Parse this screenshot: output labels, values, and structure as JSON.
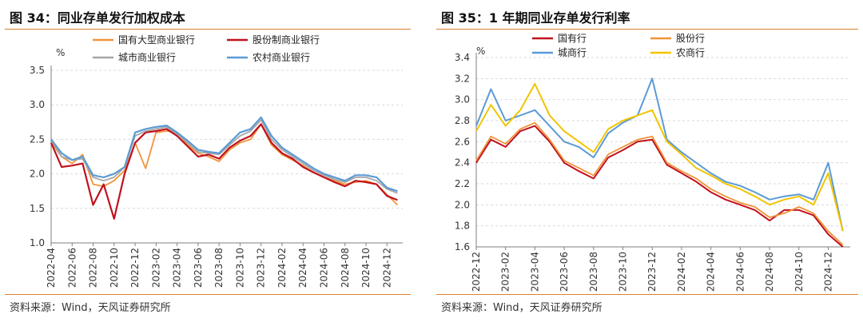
{
  "charts": [
    {
      "figure_title": "图 34：同业存单发行加权成本",
      "source": "资料来源：Wind，天风证券研究所",
      "unit": "%"
    },
    {
      "figure_title": "图 35：1 年期同业存单发行利率",
      "source": "资料来源：Wind，天风证券研究所",
      "unit": "%"
    }
  ],
  "chart_data": [
    {
      "type": "line",
      "title": "图 34：同业存单发行加权成本",
      "ylabel": "%",
      "ylim": [
        1.0,
        3.5
      ],
      "y_ticks": [
        "1.0",
        "1.5",
        "2.0",
        "2.5",
        "3.0",
        "3.5"
      ],
      "x_ticks": [
        "2022-04",
        "2022-06",
        "2022-08",
        "2022-10",
        "2022-12",
        "2023-02",
        "2023-04",
        "2023-06",
        "2023-08",
        "2023-10",
        "2023-12",
        "2024-02",
        "2024-04",
        "2024-06",
        "2024-08",
        "2024-10",
        "2024-12"
      ],
      "grid": true,
      "legend": "top",
      "series": [
        {
          "name": "国有大型商业银行",
          "color": "#f0943a",
          "width": 1.8,
          "x": [
            "2022-04",
            "2022-05",
            "2022-06",
            "2022-07",
            "2022-08",
            "2022-09",
            "2022-10",
            "2022-11",
            "2022-12",
            "2023-01",
            "2023-02",
            "2023-03",
            "2023-04",
            "2023-05",
            "2023-06",
            "2023-07",
            "2023-08",
            "2023-09",
            "2023-10",
            "2023-11",
            "2023-12",
            "2024-01",
            "2024-02",
            "2024-03",
            "2024-04",
            "2024-05",
            "2024-06",
            "2024-07",
            "2024-08",
            "2024-09",
            "2024-10",
            "2024-11",
            "2024-12",
            "2025-01"
          ],
          "values": [
            2.45,
            2.25,
            2.15,
            2.28,
            1.85,
            1.82,
            1.9,
            2.05,
            2.45,
            2.08,
            2.6,
            2.62,
            2.6,
            2.42,
            2.3,
            2.25,
            2.18,
            2.35,
            2.45,
            2.5,
            2.72,
            2.42,
            2.28,
            2.2,
            2.12,
            2.02,
            1.95,
            1.9,
            1.85,
            1.88,
            1.9,
            1.85,
            1.7,
            1.55
          ]
        },
        {
          "name": "股份制商业银行",
          "color": "#c0121e",
          "width": 2.2,
          "x": [
            "2022-04",
            "2022-05",
            "2022-06",
            "2022-07",
            "2022-08",
            "2022-09",
            "2022-10",
            "2022-11",
            "2022-12",
            "2023-01",
            "2023-02",
            "2023-03",
            "2023-04",
            "2023-05",
            "2023-06",
            "2023-07",
            "2023-08",
            "2023-09",
            "2023-10",
            "2023-11",
            "2023-12",
            "2024-01",
            "2024-02",
            "2024-03",
            "2024-04",
            "2024-05",
            "2024-06",
            "2024-07",
            "2024-08",
            "2024-09",
            "2024-10",
            "2024-11",
            "2024-12",
            "2025-01"
          ],
          "values": [
            2.45,
            2.1,
            2.12,
            2.15,
            1.55,
            1.85,
            1.35,
            2.0,
            2.45,
            2.6,
            2.62,
            2.65,
            2.55,
            2.4,
            2.25,
            2.28,
            2.22,
            2.38,
            2.48,
            2.55,
            2.72,
            2.45,
            2.3,
            2.22,
            2.1,
            2.02,
            1.95,
            1.88,
            1.82,
            1.9,
            1.88,
            1.85,
            1.68,
            1.62
          ]
        },
        {
          "name": "城市商业银行",
          "color": "#a6a6a6",
          "width": 1.8,
          "x": [
            "2022-04",
            "2022-05",
            "2022-06",
            "2022-07",
            "2022-08",
            "2022-09",
            "2022-10",
            "2022-11",
            "2022-12",
            "2023-01",
            "2023-02",
            "2023-03",
            "2023-04",
            "2023-05",
            "2023-06",
            "2023-07",
            "2023-08",
            "2023-09",
            "2023-10",
            "2023-11",
            "2023-12",
            "2024-01",
            "2024-02",
            "2024-03",
            "2024-04",
            "2024-05",
            "2024-06",
            "2024-07",
            "2024-08",
            "2024-09",
            "2024-10",
            "2024-11",
            "2024-12",
            "2025-01"
          ],
          "values": [
            2.5,
            2.25,
            2.2,
            2.22,
            1.95,
            1.9,
            1.95,
            2.1,
            2.55,
            2.62,
            2.65,
            2.68,
            2.58,
            2.45,
            2.32,
            2.3,
            2.28,
            2.42,
            2.55,
            2.62,
            2.78,
            2.5,
            2.35,
            2.25,
            2.15,
            2.05,
            1.98,
            1.92,
            1.88,
            1.95,
            1.95,
            1.9,
            1.78,
            1.72
          ]
        },
        {
          "name": "农村商业银行",
          "color": "#5b9bd5",
          "width": 2.2,
          "x": [
            "2022-04",
            "2022-05",
            "2022-06",
            "2022-07",
            "2022-08",
            "2022-09",
            "2022-10",
            "2022-11",
            "2022-12",
            "2023-01",
            "2023-02",
            "2023-03",
            "2023-04",
            "2023-05",
            "2023-06",
            "2023-07",
            "2023-08",
            "2023-09",
            "2023-10",
            "2023-11",
            "2023-12",
            "2024-01",
            "2024-02",
            "2024-03",
            "2024-04",
            "2024-05",
            "2024-06",
            "2024-07",
            "2024-08",
            "2024-09",
            "2024-10",
            "2024-11",
            "2024-12",
            "2025-01"
          ],
          "values": [
            2.5,
            2.3,
            2.2,
            2.25,
            1.98,
            1.95,
            2.0,
            2.1,
            2.6,
            2.65,
            2.68,
            2.7,
            2.6,
            2.48,
            2.35,
            2.32,
            2.3,
            2.45,
            2.6,
            2.65,
            2.82,
            2.55,
            2.38,
            2.28,
            2.18,
            2.08,
            2.0,
            1.95,
            1.9,
            1.98,
            1.98,
            1.95,
            1.8,
            1.75
          ]
        }
      ]
    },
    {
      "type": "line",
      "title": "图 35：1 年期同业存单发行利率",
      "ylabel": "%",
      "ylim": [
        1.6,
        3.4
      ],
      "y_ticks": [
        "1.6",
        "1.8",
        "2.0",
        "2.2",
        "2.4",
        "2.6",
        "2.8",
        "3.0",
        "3.2",
        "3.4"
      ],
      "x_ticks": [
        "2022-12",
        "2023-02",
        "2023-04",
        "2023-06",
        "2023-08",
        "2023-10",
        "2023-12",
        "2024-02",
        "2024-04",
        "2024-06",
        "2024-08",
        "2024-10",
        "2024-12"
      ],
      "grid": true,
      "legend": "top",
      "series": [
        {
          "name": "国有行",
          "color": "#c0121e",
          "width": 2.0,
          "x": [
            "2022-12",
            "2023-01",
            "2023-02",
            "2023-03",
            "2023-04",
            "2023-05",
            "2023-06",
            "2023-07",
            "2023-08",
            "2023-09",
            "2023-10",
            "2023-11",
            "2023-12",
            "2024-01",
            "2024-02",
            "2024-03",
            "2024-04",
            "2024-05",
            "2024-06",
            "2024-07",
            "2024-08",
            "2024-09",
            "2024-10",
            "2024-11",
            "2024-12",
            "2025-01"
          ],
          "values": [
            2.4,
            2.62,
            2.55,
            2.7,
            2.75,
            2.6,
            2.4,
            2.32,
            2.25,
            2.45,
            2.52,
            2.6,
            2.62,
            2.38,
            2.3,
            2.22,
            2.12,
            2.05,
            2.0,
            1.95,
            1.85,
            1.95,
            1.95,
            1.9,
            1.72,
            1.6
          ]
        },
        {
          "name": "股份行",
          "color": "#f0943a",
          "width": 1.8,
          "x": [
            "2022-12",
            "2023-01",
            "2023-02",
            "2023-03",
            "2023-04",
            "2023-05",
            "2023-06",
            "2023-07",
            "2023-08",
            "2023-09",
            "2023-10",
            "2023-11",
            "2023-12",
            "2024-01",
            "2024-02",
            "2024-03",
            "2024-04",
            "2024-05",
            "2024-06",
            "2024-07",
            "2024-08",
            "2024-09",
            "2024-10",
            "2024-11",
            "2024-12",
            "2025-01"
          ],
          "values": [
            2.42,
            2.65,
            2.58,
            2.72,
            2.78,
            2.62,
            2.42,
            2.35,
            2.28,
            2.48,
            2.55,
            2.62,
            2.65,
            2.4,
            2.32,
            2.25,
            2.15,
            2.08,
            2.02,
            1.98,
            1.88,
            1.92,
            1.98,
            1.92,
            1.75,
            1.62
          ]
        },
        {
          "name": "城商行",
          "color": "#5b9bd5",
          "width": 2.0,
          "x": [
            "2022-12",
            "2023-01",
            "2023-02",
            "2023-03",
            "2023-04",
            "2023-05",
            "2023-06",
            "2023-07",
            "2023-08",
            "2023-09",
            "2023-10",
            "2023-11",
            "2023-12",
            "2024-01",
            "2024-02",
            "2024-03",
            "2024-04",
            "2024-05",
            "2024-06",
            "2024-07",
            "2024-08",
            "2024-09",
            "2024-10",
            "2024-11",
            "2024-12",
            "2025-01"
          ],
          "values": [
            2.75,
            3.1,
            2.8,
            2.85,
            2.9,
            2.75,
            2.6,
            2.55,
            2.45,
            2.68,
            2.78,
            2.85,
            3.2,
            2.62,
            2.5,
            2.4,
            2.3,
            2.22,
            2.18,
            2.12,
            2.05,
            2.08,
            2.1,
            2.05,
            2.4,
            1.75
          ]
        },
        {
          "name": "农商行",
          "color": "#f2c400",
          "width": 2.0,
          "x": [
            "2022-12",
            "2023-01",
            "2023-02",
            "2023-03",
            "2023-04",
            "2023-05",
            "2023-06",
            "2023-07",
            "2023-08",
            "2023-09",
            "2023-10",
            "2023-11",
            "2023-12",
            "2024-01",
            "2024-02",
            "2024-03",
            "2024-04",
            "2024-05",
            "2024-06",
            "2024-07",
            "2024-08",
            "2024-09",
            "2024-10",
            "2024-11",
            "2024-12",
            "2025-01"
          ],
          "values": [
            2.7,
            2.95,
            2.75,
            2.9,
            3.15,
            2.85,
            2.7,
            2.6,
            2.5,
            2.72,
            2.8,
            2.85,
            2.9,
            2.6,
            2.48,
            2.35,
            2.28,
            2.2,
            2.15,
            2.08,
            2.0,
            2.05,
            2.08,
            2.0,
            2.3,
            1.75
          ]
        }
      ]
    }
  ]
}
